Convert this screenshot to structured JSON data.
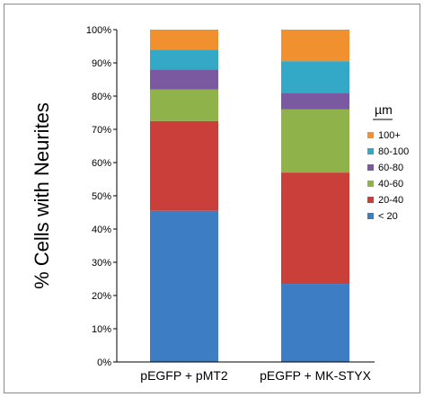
{
  "chart_data": {
    "type": "bar",
    "stacked": true,
    "ylabel": "% Cells with Neurites",
    "xlabel": "",
    "title": "",
    "ylim": [
      0,
      100
    ],
    "y_ticks": [
      "0%",
      "10%",
      "20%",
      "30%",
      "40%",
      "50%",
      "60%",
      "70%",
      "80%",
      "90%",
      "100%"
    ],
    "categories": [
      "pEGFP + pMT2",
      "pEGFP + MK-STYX"
    ],
    "legend_title": "µm",
    "legend_position": "right",
    "grid": false,
    "series": [
      {
        "name": "< 20",
        "color": "#3d7dc4",
        "values": [
          45.5,
          23.5
        ]
      },
      {
        "name": "20-40",
        "color": "#cb3f3b",
        "values": [
          27.0,
          33.5
        ]
      },
      {
        "name": "40-60",
        "color": "#8fb24a",
        "values": [
          9.5,
          19.0
        ]
      },
      {
        "name": "60-80",
        "color": "#7a59a0",
        "values": [
          6.0,
          5.0
        ]
      },
      {
        "name": "80-100",
        "color": "#33a9c7",
        "values": [
          6.0,
          9.5
        ]
      },
      {
        "name": "100+",
        "color": "#f0902e",
        "values": [
          6.0,
          9.5
        ]
      }
    ]
  }
}
